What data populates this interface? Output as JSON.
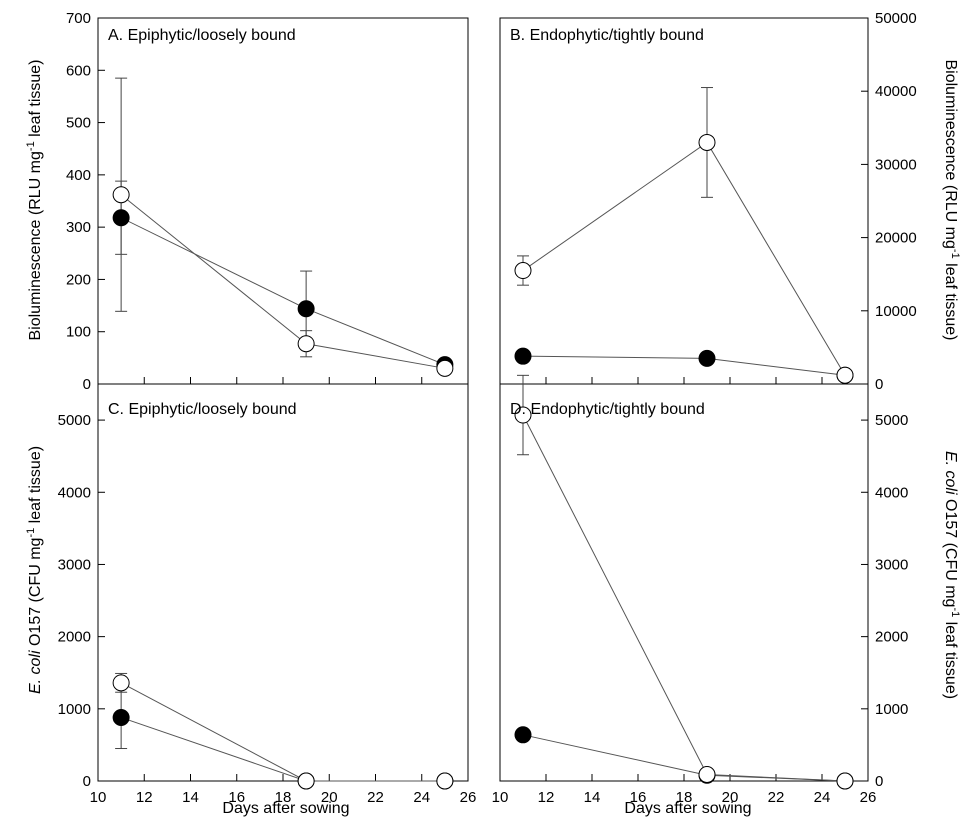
{
  "figure": {
    "xlabel": "Days after sowing"
  },
  "chart_data": [
    {
      "type": "line",
      "panel": "A",
      "title": "A. Epiphytic/loosely bound",
      "ylabel": "Bioluminescence (RLU mg-1 leaf tissue)",
      "xlabel": "",
      "xlim": [
        10,
        26
      ],
      "ylim": [
        0,
        700
      ],
      "xticks": [
        10,
        12,
        14,
        16,
        18,
        20,
        22,
        24,
        26
      ],
      "yticks": [
        0,
        100,
        200,
        300,
        400,
        500,
        600,
        700
      ],
      "series": [
        {
          "marker": "filled",
          "x": [
            11,
            19,
            25
          ],
          "y": [
            318,
            144,
            37
          ],
          "err": [
            70,
            72,
            0
          ]
        },
        {
          "marker": "open",
          "x": [
            11,
            19,
            25
          ],
          "y": [
            362,
            77,
            30
          ],
          "err": [
            223,
            25,
            0
          ]
        }
      ]
    },
    {
      "type": "line",
      "panel": "B",
      "title": "B. Endophytic/tightly bound",
      "ylabel": "Bioluminescence (RLU mg-1 leaf tissue)",
      "xlabel": "",
      "xlim": [
        10,
        26
      ],
      "ylim": [
        0,
        50000
      ],
      "xticks": [
        10,
        12,
        14,
        16,
        18,
        20,
        22,
        24,
        26
      ],
      "yticks": [
        0,
        10000,
        20000,
        30000,
        40000,
        50000
      ],
      "series": [
        {
          "marker": "filled",
          "x": [
            11,
            19,
            25
          ],
          "y": [
            3800,
            3500,
            1200
          ],
          "err": [
            0,
            0,
            0
          ]
        },
        {
          "marker": "open",
          "x": [
            11,
            19,
            25
          ],
          "y": [
            15500,
            33000,
            1200
          ],
          "err": [
            2000,
            7500,
            0
          ]
        }
      ]
    },
    {
      "type": "line",
      "panel": "C",
      "title": "C. Epiphytic/loosely bound",
      "ylabel": "E. coli O157 (CFU mg-1 leaf tissue)",
      "xlabel": "Days after sowing",
      "xlim": [
        10,
        26
      ],
      "ylim": [
        0,
        5500
      ],
      "xticks": [
        10,
        12,
        14,
        16,
        18,
        20,
        22,
        24,
        26
      ],
      "yticks": [
        0,
        1000,
        2000,
        3000,
        4000,
        5000
      ],
      "series": [
        {
          "marker": "filled",
          "x": [
            11,
            19,
            25
          ],
          "y": [
            880,
            0,
            0
          ],
          "err": [
            430,
            0,
            0
          ]
        },
        {
          "marker": "open",
          "x": [
            11,
            19,
            25
          ],
          "y": [
            1360,
            0,
            0
          ],
          "err": [
            130,
            0,
            0
          ]
        }
      ]
    },
    {
      "type": "line",
      "panel": "D",
      "title": "D. Endophytic/tightly bound",
      "ylabel": "E. coli O157 (CFU mg-1 leaf tissue)",
      "xlabel": "Days after sowing",
      "xlim": [
        10,
        26
      ],
      "ylim": [
        0,
        5500
      ],
      "xticks": [
        10,
        12,
        14,
        16,
        18,
        20,
        22,
        24,
        26
      ],
      "yticks": [
        0,
        1000,
        2000,
        3000,
        4000,
        5000
      ],
      "series": [
        {
          "marker": "filled",
          "x": [
            11,
            19,
            25
          ],
          "y": [
            640,
            80,
            0
          ],
          "err": [
            0,
            0,
            0
          ]
        },
        {
          "marker": "open",
          "x": [
            11,
            19,
            25
          ],
          "y": [
            5070,
            90,
            0
          ],
          "err": [
            550,
            0,
            0
          ]
        }
      ]
    }
  ]
}
